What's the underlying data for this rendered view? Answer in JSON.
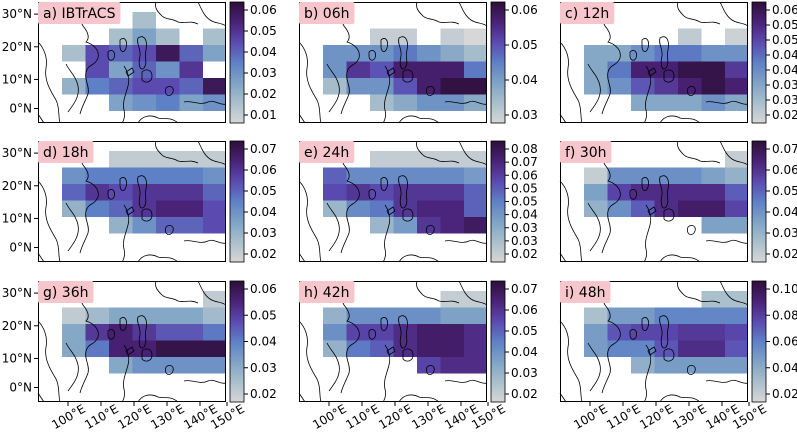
{
  "chart_data": {
    "type": "heatmap",
    "colormap": [
      "#d7d7d7",
      "#a9bfcc",
      "#7fa3c6",
      "#5e80c6",
      "#5b4ab0",
      "#4a2277",
      "#2d0f3a"
    ],
    "panel_background": "#ffffff",
    "title_color": "#f7c6cd",
    "lat_ticks": [
      "0°N",
      "10°N",
      "20°N",
      "30°N"
    ],
    "lon_ticks": [
      "100°E",
      "110°E",
      "120°E",
      "130°E",
      "140°E",
      "150°E"
    ],
    "panels": [
      {
        "title": "a) IBTrACS",
        "cbar_ticks": [
          "0.01",
          "0.02",
          "0.03",
          "0.04",
          "0.05",
          "0.06"
        ],
        "vmin": 0.005,
        "vmax": 0.065,
        "grid": [
          [
            null,
            null,
            null,
            0.015,
            null,
            null,
            null,
            null
          ],
          [
            null,
            null,
            0.015,
            0.025,
            0.015,
            null,
            0.015,
            0.03
          ],
          [
            0.015,
            0.045,
            0.04,
            0.045,
            0.06,
            0.04,
            0.025,
            0.035
          ],
          [
            null,
            0.045,
            0.025,
            0.04,
            0.03,
            0.05,
            null,
            0.02
          ],
          [
            0.02,
            0.035,
            0.04,
            0.045,
            0.045,
            0.04,
            0.06,
            0.025
          ],
          [
            null,
            null,
            0.025,
            0.03,
            0.035,
            0.025,
            0.03,
            0.025
          ]
        ]
      },
      {
        "title": "b) 06h",
        "cbar_ticks": [
          "0.03",
          "0.04",
          "0.05",
          "0.06"
        ],
        "vmin": 0.022,
        "vmax": 0.066,
        "grid": [
          [
            null,
            null,
            null,
            null,
            null,
            null,
            null,
            null
          ],
          [
            null,
            null,
            0.025,
            0.025,
            null,
            0.025,
            0.022,
            null
          ],
          [
            0.04,
            0.04,
            0.04,
            0.045,
            0.04,
            0.035,
            0.03,
            0.03
          ],
          [
            0.04,
            0.055,
            0.05,
            0.06,
            0.06,
            0.06,
            0.045,
            0.04
          ],
          [
            0.03,
            0.04,
            0.04,
            0.05,
            0.06,
            0.065,
            0.065,
            0.065
          ],
          [
            null,
            null,
            0.03,
            0.035,
            0.04,
            0.04,
            0.035,
            0.03
          ]
        ]
      },
      {
        "title": "c) 12h",
        "cbar_ticks": [
          "0.02",
          "0.03",
          "0.03",
          "0.04",
          "0.04",
          "0.05",
          "0.05",
          "0.06"
        ],
        "vmin": 0.016,
        "vmax": 0.062,
        "grid": [
          [
            null,
            null,
            null,
            null,
            null,
            null,
            null,
            null
          ],
          [
            null,
            null,
            null,
            null,
            0.02,
            null,
            0.018,
            null
          ],
          [
            0.03,
            0.03,
            0.035,
            0.04,
            0.04,
            0.035,
            0.035,
            0.03
          ],
          [
            0.03,
            0.04,
            0.055,
            0.055,
            0.06,
            0.06,
            0.05,
            0.04
          ],
          [
            0.03,
            0.035,
            0.045,
            0.05,
            0.055,
            0.06,
            0.055,
            0.04
          ],
          [
            null,
            null,
            0.03,
            0.03,
            0.03,
            0.035,
            0.03,
            0.025
          ]
        ]
      },
      {
        "title": "d) 18h",
        "cbar_ticks": [
          "0.02",
          "0.03",
          "0.04",
          "0.05",
          "0.06",
          "0.07"
        ],
        "vmin": 0.015,
        "vmax": 0.075,
        "grid": [
          [
            null,
            null,
            0.02,
            0.02,
            0.02,
            0.02,
            0.02,
            0.02
          ],
          [
            0.04,
            0.045,
            0.045,
            0.045,
            0.045,
            0.045,
            0.04,
            0.035
          ],
          [
            0.05,
            0.06,
            0.055,
            0.06,
            0.06,
            0.06,
            0.05,
            0.045
          ],
          [
            0.03,
            0.045,
            0.05,
            0.06,
            0.065,
            0.065,
            0.055,
            0.045
          ],
          [
            null,
            null,
            0.03,
            0.04,
            0.05,
            0.05,
            0.055,
            0.06
          ],
          [
            null,
            null,
            null,
            null,
            null,
            null,
            null,
            null
          ]
        ]
      },
      {
        "title": "e) 24h",
        "cbar_ticks": [
          "0.02",
          "0.03",
          "0.03",
          "0.04",
          "0.05",
          "0.05",
          "0.06",
          "0.07",
          "0.08"
        ],
        "vmin": 0.015,
        "vmax": 0.082,
        "grid": [
          [
            null,
            null,
            0.02,
            0.02,
            0.02,
            0.02,
            0.02,
            0.02
          ],
          [
            0.055,
            0.045,
            0.045,
            0.045,
            0.045,
            0.045,
            0.04,
            0.035
          ],
          [
            0.06,
            0.065,
            0.06,
            0.065,
            0.065,
            0.065,
            0.055,
            0.045
          ],
          [
            0.03,
            0.045,
            0.05,
            0.065,
            0.07,
            0.07,
            0.055,
            0.05
          ],
          [
            null,
            null,
            0.03,
            0.04,
            0.065,
            0.07,
            0.075,
            0.065
          ],
          [
            null,
            null,
            null,
            null,
            null,
            null,
            null,
            null
          ]
        ]
      },
      {
        "title": "f) 30h",
        "cbar_ticks": [
          "0.02",
          "0.03",
          "0.04",
          "0.05",
          "0.06",
          "0.07"
        ],
        "vmin": 0.016,
        "vmax": 0.072,
        "grid": [
          [
            null,
            null,
            null,
            null,
            null,
            null,
            0.02,
            null
          ],
          [
            0.02,
            0.04,
            0.04,
            0.04,
            0.04,
            0.035,
            0.03,
            0.025
          ],
          [
            0.035,
            0.055,
            0.06,
            0.06,
            0.06,
            0.06,
            0.05,
            0.04
          ],
          [
            0.03,
            0.04,
            0.05,
            0.06,
            0.065,
            0.065,
            0.055,
            0.065
          ],
          [
            null,
            null,
            null,
            null,
            null,
            0.035,
            0.035,
            null
          ],
          [
            null,
            null,
            null,
            null,
            null,
            null,
            null,
            null
          ]
        ]
      },
      {
        "title": "g) 36h",
        "cbar_ticks": [
          "0.02",
          "0.03",
          "0.04",
          "0.05",
          "0.06"
        ],
        "vmin": 0.016,
        "vmax": 0.062,
        "grid": [
          [
            null,
            null,
            null,
            null,
            null,
            null,
            0.02,
            null
          ],
          [
            0.02,
            0.025,
            0.03,
            0.03,
            0.03,
            0.03,
            0.025,
            0.02
          ],
          [
            0.03,
            0.05,
            0.055,
            0.05,
            0.045,
            0.045,
            0.04,
            0.035
          ],
          [
            0.03,
            0.04,
            0.055,
            0.055,
            0.06,
            0.06,
            0.06,
            0.055
          ],
          [
            null,
            null,
            0.03,
            0.035,
            0.035,
            0.035,
            0.035,
            0.03
          ],
          [
            null,
            null,
            null,
            null,
            null,
            null,
            null,
            null
          ]
        ]
      },
      {
        "title": "h) 42h",
        "cbar_ticks": [
          "0.02",
          "0.03",
          "0.04",
          "0.05",
          "0.06",
          "0.07"
        ],
        "vmin": 0.016,
        "vmax": 0.072,
        "grid": [
          [
            null,
            null,
            null,
            null,
            null,
            0.02,
            0.02,
            0.02
          ],
          [
            0.03,
            0.04,
            0.04,
            0.04,
            0.04,
            0.035,
            0.035,
            0.03
          ],
          [
            0.04,
            0.055,
            0.055,
            0.06,
            0.065,
            0.065,
            0.06,
            0.05
          ],
          [
            0.03,
            0.045,
            0.05,
            0.06,
            0.065,
            0.065,
            0.06,
            0.055
          ],
          [
            null,
            null,
            null,
            null,
            0.055,
            0.06,
            0.06,
            0.055
          ],
          [
            null,
            null,
            null,
            null,
            null,
            null,
            null,
            null
          ]
        ]
      },
      {
        "title": "i) 48h",
        "cbar_ticks": [
          "0.02",
          "0.04",
          "0.06",
          "0.08",
          "0.10"
        ],
        "vmin": 0.015,
        "vmax": 0.11,
        "grid": [
          [
            null,
            null,
            null,
            null,
            null,
            0.03,
            0.03,
            0.03
          ],
          [
            0.03,
            0.05,
            0.05,
            0.06,
            0.06,
            0.06,
            0.06,
            0.05
          ],
          [
            0.05,
            0.075,
            0.08,
            0.08,
            0.085,
            0.085,
            0.08,
            0.065
          ],
          [
            0.05,
            0.06,
            0.06,
            0.075,
            0.09,
            0.09,
            0.075,
            0.06
          ],
          [
            null,
            null,
            0.04,
            0.05,
            0.05,
            0.05,
            0.05,
            0.04
          ],
          [
            null,
            null,
            null,
            null,
            null,
            null,
            null,
            null
          ]
        ]
      }
    ]
  }
}
